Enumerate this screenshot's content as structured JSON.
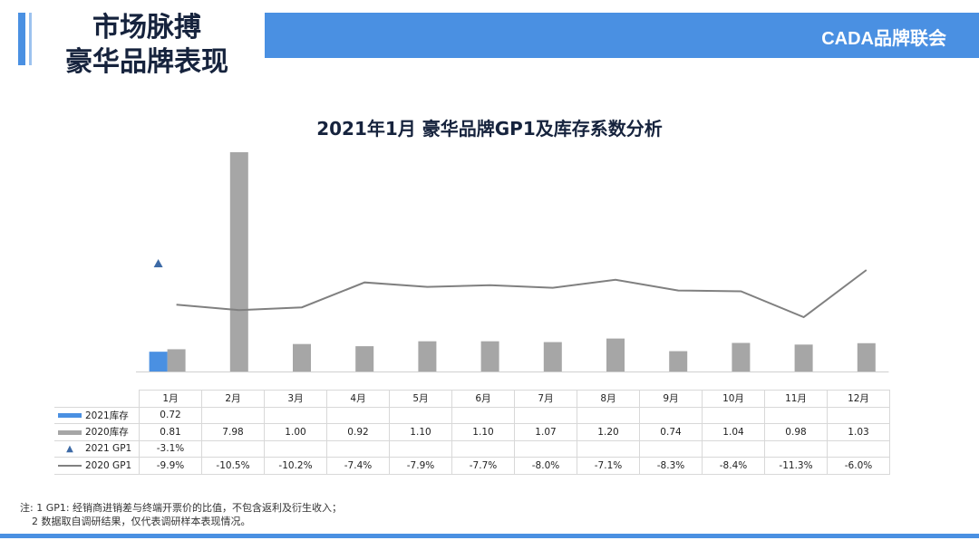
{
  "header": {
    "title_line1": "市场脉搏",
    "title_line2": "豪华品牌表现",
    "brand": "CADA品牌联会"
  },
  "colors": {
    "accent": "#4a90e2",
    "bar_2021": "#4a90e2",
    "bar_2020": "#a6a6a6",
    "line_2020": "#808080",
    "marker_2021": "#3d6aa6"
  },
  "chart_data": {
    "type": "bar",
    "title": "2021年1月 豪华品牌GP1及库存系数分析",
    "categories": [
      "1月",
      "2月",
      "3月",
      "4月",
      "5月",
      "6月",
      "7月",
      "8月",
      "9月",
      "10月",
      "11月",
      "12月"
    ],
    "series": [
      {
        "name": "2021库存",
        "kind": "bar",
        "values": [
          0.72,
          null,
          null,
          null,
          null,
          null,
          null,
          null,
          null,
          null,
          null,
          null
        ]
      },
      {
        "name": "2020库存",
        "kind": "bar",
        "values": [
          0.81,
          7.98,
          1.0,
          0.92,
          1.1,
          1.1,
          1.07,
          1.2,
          0.74,
          1.04,
          0.98,
          1.03
        ]
      },
      {
        "name": "2021 GP1",
        "kind": "marker",
        "values": [
          -3.1,
          null,
          null,
          null,
          null,
          null,
          null,
          null,
          null,
          null,
          null,
          null
        ]
      },
      {
        "name": "2020 GP1",
        "kind": "line",
        "values": [
          -9.9,
          -10.5,
          -10.2,
          -7.4,
          -7.9,
          -7.7,
          -8.0,
          -7.1,
          -8.3,
          -8.4,
          -11.3,
          -6.0
        ]
      }
    ],
    "table": {
      "months": [
        "1月",
        "2月",
        "3月",
        "4月",
        "5月",
        "6月",
        "7月",
        "8月",
        "9月",
        "10月",
        "11月",
        "12月"
      ],
      "rows": [
        {
          "label": "2021库存",
          "cells": [
            "0.72",
            "",
            "",
            "",
            "",
            "",
            "",
            "",
            "",
            "",
            "",
            ""
          ]
        },
        {
          "label": "2020库存",
          "cells": [
            "0.81",
            "7.98",
            "1.00",
            "0.92",
            "1.10",
            "1.10",
            "1.07",
            "1.20",
            "0.74",
            "1.04",
            "0.98",
            "1.03"
          ]
        },
        {
          "label": "2021 GP1",
          "cells": [
            "-3.1%",
            "",
            "",
            "",
            "",
            "",
            "",
            "",
            "",
            "",
            "",
            ""
          ]
        },
        {
          "label": "2020 GP1",
          "cells": [
            "-9.9%",
            "-10.5%",
            "-10.2%",
            "-7.4%",
            "-7.9%",
            "-7.7%",
            "-8.0%",
            "-7.1%",
            "-8.3%",
            "-8.4%",
            "-11.3%",
            "-6.0%"
          ]
        }
      ]
    },
    "legend": "table-left",
    "grid": false
  },
  "notes": {
    "line1": "注: 1 GP1: 经销商进销差与终端开票价的比值，不包含返利及衍生收入；",
    "line2": "2 数据取自调研结果，仅代表调研样本表现情况。"
  }
}
